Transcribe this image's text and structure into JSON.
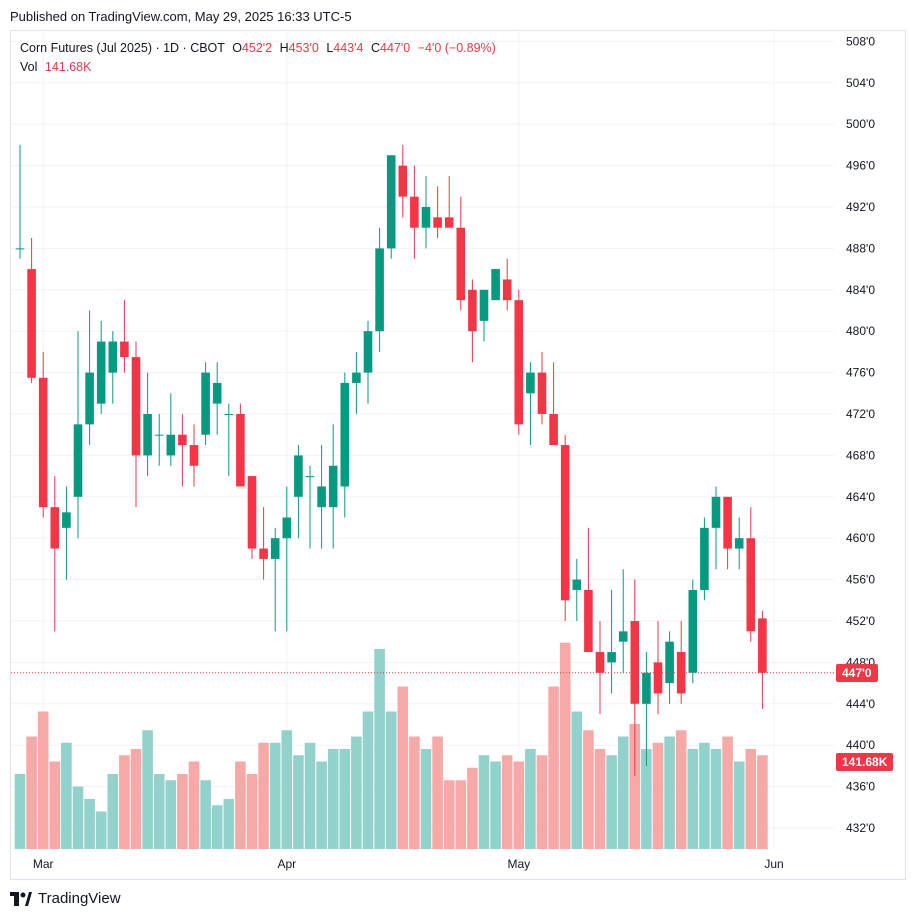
{
  "header": {
    "published": "Published on TradingView.com, May 29, 2025 16:33 UTC-5"
  },
  "legend": {
    "symbol": "Corn Futures (Jul 2025) · 1D · CBOT",
    "o_label": "O",
    "o_value": "452'2",
    "h_label": "H",
    "h_value": "453'0",
    "l_label": "L",
    "l_value": "443'4",
    "c_label": "C",
    "c_value": "447'0",
    "change": "−4'0 (−0.89%)",
    "vol_label": "Vol",
    "vol_value": "141.68K"
  },
  "badges": {
    "last_price": "447'0",
    "last_volume": "141.68K"
  },
  "footer": {
    "brand": "TradingView"
  },
  "colors": {
    "up": "#089981",
    "down": "#f23645",
    "up_vol": "#92d2cc",
    "down_vol": "#f7a9a7"
  },
  "chart_data": {
    "type": "candlestick",
    "title": "Corn Futures (Jul 2025) · 1D · CBOT",
    "y_axis": {
      "position": "right",
      "min": 430,
      "max": 510,
      "tick_values": [
        432,
        436,
        440,
        444,
        448,
        452,
        456,
        460,
        464,
        468,
        472,
        476,
        480,
        484,
        488,
        492,
        496,
        500,
        504,
        508
      ],
      "tick_labels": [
        "432'0",
        "436'0",
        "440'0",
        "444'0",
        "448'0",
        "452'0",
        "456'0",
        "460'0",
        "464'0",
        "468'0",
        "472'0",
        "476'0",
        "480'0",
        "484'0",
        "488'0",
        "492'0",
        "496'0",
        "500'0",
        "504'0",
        "508'0"
      ]
    },
    "x_axis": {
      "labels": [
        {
          "text": "Mar",
          "index": 2
        },
        {
          "text": "Apr",
          "index": 23
        },
        {
          "text": "May",
          "index": 43
        },
        {
          "text": "Jun",
          "index": 65
        }
      ]
    },
    "grid": true,
    "last_price": 447,
    "candles": [
      {
        "o": 488,
        "h": 498,
        "l": 487,
        "c": 488,
        "v": 60
      },
      {
        "o": 486,
        "h": 489,
        "l": 475,
        "c": 475.5,
        "v": 90
      },
      {
        "o": 475.5,
        "h": 478,
        "l": 462,
        "c": 463,
        "v": 110
      },
      {
        "o": 463,
        "h": 466,
        "l": 451,
        "c": 459,
        "v": 70
      },
      {
        "o": 461,
        "h": 465,
        "l": 456,
        "c": 462.5,
        "v": 85
      },
      {
        "o": 464,
        "h": 480,
        "l": 460,
        "c": 471,
        "v": 50
      },
      {
        "o": 471,
        "h": 482,
        "l": 469,
        "c": 476,
        "v": 40
      },
      {
        "o": 473,
        "h": 481,
        "l": 472,
        "c": 479,
        "v": 30
      },
      {
        "o": 476,
        "h": 480,
        "l": 473,
        "c": 479,
        "v": 60
      },
      {
        "o": 479,
        "h": 483,
        "l": 476,
        "c": 477.5,
        "v": 75
      },
      {
        "o": 477.5,
        "h": 479,
        "l": 463,
        "c": 468,
        "v": 80
      },
      {
        "o": 468,
        "h": 476,
        "l": 466,
        "c": 472,
        "v": 95
      },
      {
        "o": 470,
        "h": 472,
        "l": 467,
        "c": 470,
        "v": 60
      },
      {
        "o": 468,
        "h": 474,
        "l": 467,
        "c": 470,
        "v": 55
      },
      {
        "o": 470,
        "h": 472,
        "l": 465,
        "c": 469,
        "v": 60
      },
      {
        "o": 469,
        "h": 471,
        "l": 465,
        "c": 467,
        "v": 70
      },
      {
        "o": 470,
        "h": 477,
        "l": 469,
        "c": 476,
        "v": 55
      },
      {
        "o": 473,
        "h": 477,
        "l": 470,
        "c": 475,
        "v": 35
      },
      {
        "o": 472,
        "h": 473,
        "l": 466,
        "c": 472,
        "v": 40
      },
      {
        "o": 472,
        "h": 473,
        "l": 465,
        "c": 465,
        "v": 70
      },
      {
        "o": 466,
        "h": 466,
        "l": 458,
        "c": 459,
        "v": 60
      },
      {
        "o": 459,
        "h": 463,
        "l": 456,
        "c": 458,
        "v": 85
      },
      {
        "o": 458,
        "h": 461,
        "l": 451,
        "c": 460,
        "v": 85
      },
      {
        "o": 460,
        "h": 465,
        "l": 451,
        "c": 462,
        "v": 95
      },
      {
        "o": 464,
        "h": 469,
        "l": 460,
        "c": 468,
        "v": 75
      },
      {
        "o": 466,
        "h": 467,
        "l": 459,
        "c": 466,
        "v": 85
      },
      {
        "o": 463,
        "h": 469,
        "l": 459,
        "c": 465,
        "v": 70
      },
      {
        "o": 463,
        "h": 471,
        "l": 459,
        "c": 467,
        "v": 80
      },
      {
        "o": 465,
        "h": 476,
        "l": 462,
        "c": 475,
        "v": 80
      },
      {
        "o": 475,
        "h": 478,
        "l": 472,
        "c": 476,
        "v": 90
      },
      {
        "o": 476,
        "h": 481,
        "l": 473,
        "c": 480,
        "v": 110
      },
      {
        "o": 480,
        "h": 490,
        "l": 478,
        "c": 488,
        "v": 160
      },
      {
        "o": 488,
        "h": 497,
        "l": 487,
        "c": 497,
        "v": 110
      },
      {
        "o": 496,
        "h": 498,
        "l": 491,
        "c": 493,
        "v": 130
      },
      {
        "o": 493,
        "h": 496,
        "l": 487,
        "c": 490,
        "v": 90
      },
      {
        "o": 490,
        "h": 495,
        "l": 488,
        "c": 492,
        "v": 80
      },
      {
        "o": 491,
        "h": 494,
        "l": 489,
        "c": 490,
        "v": 90
      },
      {
        "o": 491,
        "h": 495,
        "l": 490,
        "c": 490,
        "v": 55
      },
      {
        "o": 490,
        "h": 493,
        "l": 482,
        "c": 483,
        "v": 55
      },
      {
        "o": 484,
        "h": 485,
        "l": 477,
        "c": 480,
        "v": 65
      },
      {
        "o": 481,
        "h": 484,
        "l": 479,
        "c": 484,
        "v": 75
      },
      {
        "o": 483,
        "h": 486,
        "l": 483,
        "c": 486,
        "v": 70
      },
      {
        "o": 485,
        "h": 487,
        "l": 482,
        "c": 483,
        "v": 75
      },
      {
        "o": 483,
        "h": 484,
        "l": 470,
        "c": 471,
        "v": 70
      },
      {
        "o": 474,
        "h": 477,
        "l": 469,
        "c": 476,
        "v": 80
      },
      {
        "o": 476,
        "h": 478,
        "l": 471,
        "c": 472,
        "v": 75
      },
      {
        "o": 472,
        "h": 477,
        "l": 469,
        "c": 469,
        "v": 130
      },
      {
        "o": 469,
        "h": 470,
        "l": 452,
        "c": 454,
        "v": 165
      },
      {
        "o": 455,
        "h": 458,
        "l": 452,
        "c": 456,
        "v": 110
      },
      {
        "o": 455,
        "h": 461,
        "l": 449,
        "c": 449,
        "v": 95
      },
      {
        "o": 449,
        "h": 452,
        "l": 443,
        "c": 447,
        "v": 80
      },
      {
        "o": 448,
        "h": 455,
        "l": 445,
        "c": 449,
        "v": 75
      },
      {
        "o": 450,
        "h": 457,
        "l": 447,
        "c": 451,
        "v": 90
      },
      {
        "o": 452,
        "h": 456,
        "l": 437,
        "c": 444,
        "v": 100
      },
      {
        "o": 444,
        "h": 449,
        "l": 438,
        "c": 447,
        "v": 80
      },
      {
        "o": 448,
        "h": 452,
        "l": 443,
        "c": 445,
        "v": 85
      },
      {
        "o": 446,
        "h": 451,
        "l": 444,
        "c": 450,
        "v": 90
      },
      {
        "o": 449,
        "h": 452,
        "l": 444,
        "c": 445,
        "v": 95
      },
      {
        "o": 447,
        "h": 456,
        "l": 446,
        "c": 455,
        "v": 80
      },
      {
        "o": 455,
        "h": 462,
        "l": 454,
        "c": 461,
        "v": 85
      },
      {
        "o": 461,
        "h": 465,
        "l": 457,
        "c": 464,
        "v": 80
      },
      {
        "o": 464,
        "h": 464,
        "l": 457,
        "c": 459,
        "v": 90
      },
      {
        "o": 459,
        "h": 462,
        "l": 457,
        "c": 460,
        "v": 70
      },
      {
        "o": 460,
        "h": 463,
        "l": 450,
        "c": 451,
        "v": 80
      },
      {
        "o": 452.25,
        "h": 453,
        "l": 443.5,
        "c": 447,
        "v": 75
      }
    ]
  }
}
